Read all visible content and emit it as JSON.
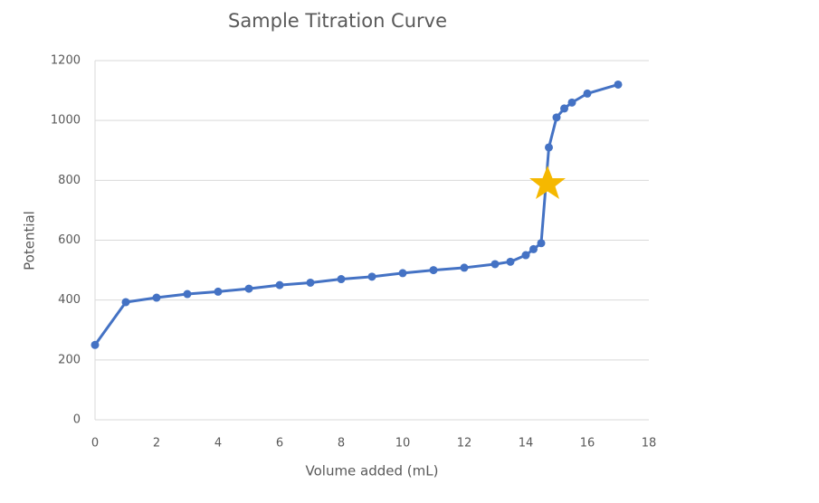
{
  "chart_data": {
    "type": "line",
    "title": "Sample Titration Curve",
    "x_label": "Volume added (mL)",
    "y_label": "Potential",
    "x": [
      0,
      1,
      2,
      3,
      4,
      5,
      6,
      7,
      8,
      9,
      10,
      11,
      12,
      13,
      13.5,
      14,
      14.25,
      14.5,
      14.75,
      15,
      15.25,
      15.5,
      16,
      17
    ],
    "series": [
      {
        "name": "Potential",
        "color": "#4472c4",
        "values": [
          250,
          393,
          408,
          420,
          428,
          438,
          450,
          458,
          470,
          478,
          490,
          500,
          508,
          520,
          528,
          550,
          570,
          590,
          910,
          1010,
          1040,
          1060,
          1090,
          1120
        ]
      }
    ],
    "xlim": [
      0,
      18
    ],
    "xticks": [
      0,
      2,
      4,
      6,
      8,
      10,
      12,
      14,
      16,
      18
    ],
    "ylim": [
      0,
      1200
    ],
    "yticks": [
      0,
      200,
      400,
      600,
      800,
      1000,
      1200
    ],
    "grid": true
  }
}
